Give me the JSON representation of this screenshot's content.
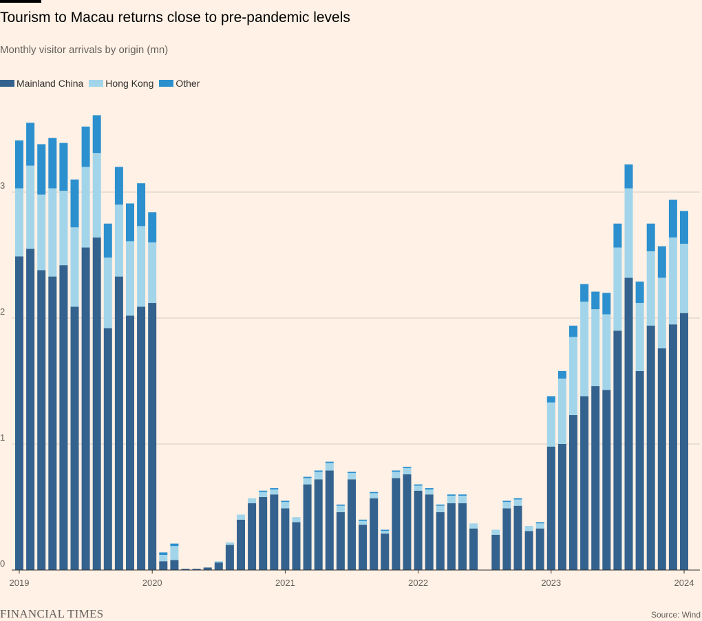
{
  "header": {
    "title": "Tourism to Macau returns close to pre-pandemic levels",
    "subtitle": "Monthly visitor arrivals by origin (mn)"
  },
  "legend": [
    {
      "label": "Mainland China",
      "color": "#34628e"
    },
    {
      "label": "Hong Kong",
      "color": "#a3d5ea"
    },
    {
      "label": "Other",
      "color": "#2c90cf"
    }
  ],
  "footer": {
    "brand": "FINANCIAL TIMES",
    "source": "Source: Wind"
  },
  "chart_data": {
    "type": "bar",
    "stacked": true,
    "title": "Tourism to Macau returns close to pre-pandemic levels",
    "subtitle": "Monthly visitor arrivals by origin (mn)",
    "xlabel": "",
    "ylabel": "",
    "ylim": [
      0,
      3.6
    ],
    "yticks": [
      0,
      1,
      2,
      3
    ],
    "xticks": [
      {
        "label": "2019",
        "index": 0
      },
      {
        "label": "2020",
        "index": 12
      },
      {
        "label": "2021",
        "index": 24
      },
      {
        "label": "2022",
        "index": 36
      },
      {
        "label": "2023",
        "index": 48
      },
      {
        "label": "2024",
        "index": 60
      }
    ],
    "grid": true,
    "legend_position": "top-left",
    "categories": [
      "2019-01",
      "2019-02",
      "2019-03",
      "2019-04",
      "2019-05",
      "2019-06",
      "2019-07",
      "2019-08",
      "2019-09",
      "2019-10",
      "2019-11",
      "2019-12",
      "2020-01",
      "2020-02",
      "2020-03",
      "2020-04",
      "2020-05",
      "2020-06",
      "2020-07",
      "2020-08",
      "2020-09",
      "2020-10",
      "2020-11",
      "2020-12",
      "2021-01",
      "2021-02",
      "2021-03",
      "2021-04",
      "2021-05",
      "2021-06",
      "2021-07",
      "2021-08",
      "2021-09",
      "2021-10",
      "2021-11",
      "2021-12",
      "2022-01",
      "2022-02",
      "2022-03",
      "2022-04",
      "2022-05",
      "2022-06",
      "2022-07",
      "2022-08",
      "2022-09",
      "2022-10",
      "2022-11",
      "2022-12",
      "2023-01",
      "2023-02",
      "2023-03",
      "2023-04",
      "2023-05",
      "2023-06",
      "2023-07",
      "2023-08",
      "2023-09",
      "2023-10",
      "2023-11",
      "2023-12",
      "2024-01"
    ],
    "series": [
      {
        "name": "Mainland China",
        "color": "#34628e",
        "values": [
          2.49,
          2.55,
          2.38,
          2.33,
          2.42,
          2.09,
          2.56,
          2.64,
          1.92,
          2.33,
          2.02,
          2.09,
          2.12,
          0.07,
          0.08,
          0.01,
          0.01,
          0.02,
          0.06,
          0.2,
          0.4,
          0.53,
          0.58,
          0.6,
          0.49,
          0.38,
          0.68,
          0.72,
          0.79,
          0.46,
          0.72,
          0.36,
          0.57,
          0.29,
          0.73,
          0.76,
          0.63,
          0.6,
          0.46,
          0.53,
          0.53,
          0.33,
          0.0,
          0.28,
          0.49,
          0.51,
          0.31,
          0.33,
          0.98,
          1.0,
          1.23,
          1.38,
          1.46,
          1.43,
          1.9,
          2.32,
          1.58,
          1.94,
          1.76,
          1.95,
          2.04
        ]
      },
      {
        "name": "Hong Kong",
        "color": "#a3d5ea",
        "values": [
          0.54,
          0.66,
          0.6,
          0.7,
          0.59,
          0.63,
          0.64,
          0.67,
          0.56,
          0.57,
          0.59,
          0.64,
          0.48,
          0.05,
          0.11,
          0.0,
          0.0,
          0.0,
          0.01,
          0.02,
          0.04,
          0.04,
          0.04,
          0.04,
          0.05,
          0.04,
          0.05,
          0.06,
          0.06,
          0.05,
          0.05,
          0.03,
          0.04,
          0.02,
          0.05,
          0.05,
          0.04,
          0.04,
          0.05,
          0.06,
          0.06,
          0.04,
          0.0,
          0.04,
          0.05,
          0.05,
          0.04,
          0.04,
          0.35,
          0.52,
          0.62,
          0.75,
          0.61,
          0.6,
          0.66,
          0.71,
          0.54,
          0.59,
          0.56,
          0.69,
          0.55
        ]
      },
      {
        "name": "Other",
        "color": "#2c90cf",
        "values": [
          0.38,
          0.34,
          0.4,
          0.4,
          0.38,
          0.38,
          0.32,
          0.3,
          0.27,
          0.3,
          0.3,
          0.34,
          0.24,
          0.02,
          0.02,
          0.0,
          0.0,
          0.0,
          0.0,
          0.0,
          0.0,
          0.0,
          0.01,
          0.01,
          0.01,
          0.0,
          0.01,
          0.01,
          0.01,
          0.01,
          0.01,
          0.01,
          0.01,
          0.01,
          0.01,
          0.01,
          0.01,
          0.01,
          0.01,
          0.01,
          0.01,
          0.0,
          0.0,
          0.0,
          0.01,
          0.01,
          0.0,
          0.01,
          0.05,
          0.06,
          0.09,
          0.14,
          0.14,
          0.17,
          0.19,
          0.19,
          0.17,
          0.22,
          0.25,
          0.3,
          0.26
        ]
      }
    ]
  }
}
